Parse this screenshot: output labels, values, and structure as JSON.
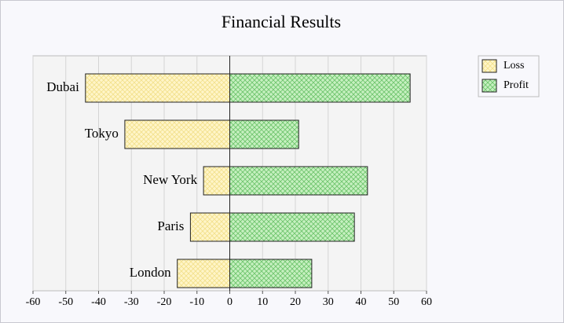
{
  "chart_data": {
    "type": "hbar",
    "title": "Financial Results",
    "categories": [
      "Dubai",
      "Tokyo",
      "New York",
      "Paris",
      "London"
    ],
    "series": [
      {
        "name": "Loss",
        "color": "#fff5c8",
        "values": [
          -44,
          -32,
          -8,
          -12,
          -16
        ]
      },
      {
        "name": "Profit",
        "color": "#c6f0c0",
        "values": [
          55,
          21,
          42,
          38,
          25
        ]
      }
    ],
    "xlim": [
      -60,
      60
    ],
    "xticks": [
      -60,
      -50,
      -40,
      -30,
      -20,
      -10,
      0,
      10,
      20,
      30,
      40,
      50,
      60
    ],
    "grid": true,
    "legend": "top-right"
  }
}
